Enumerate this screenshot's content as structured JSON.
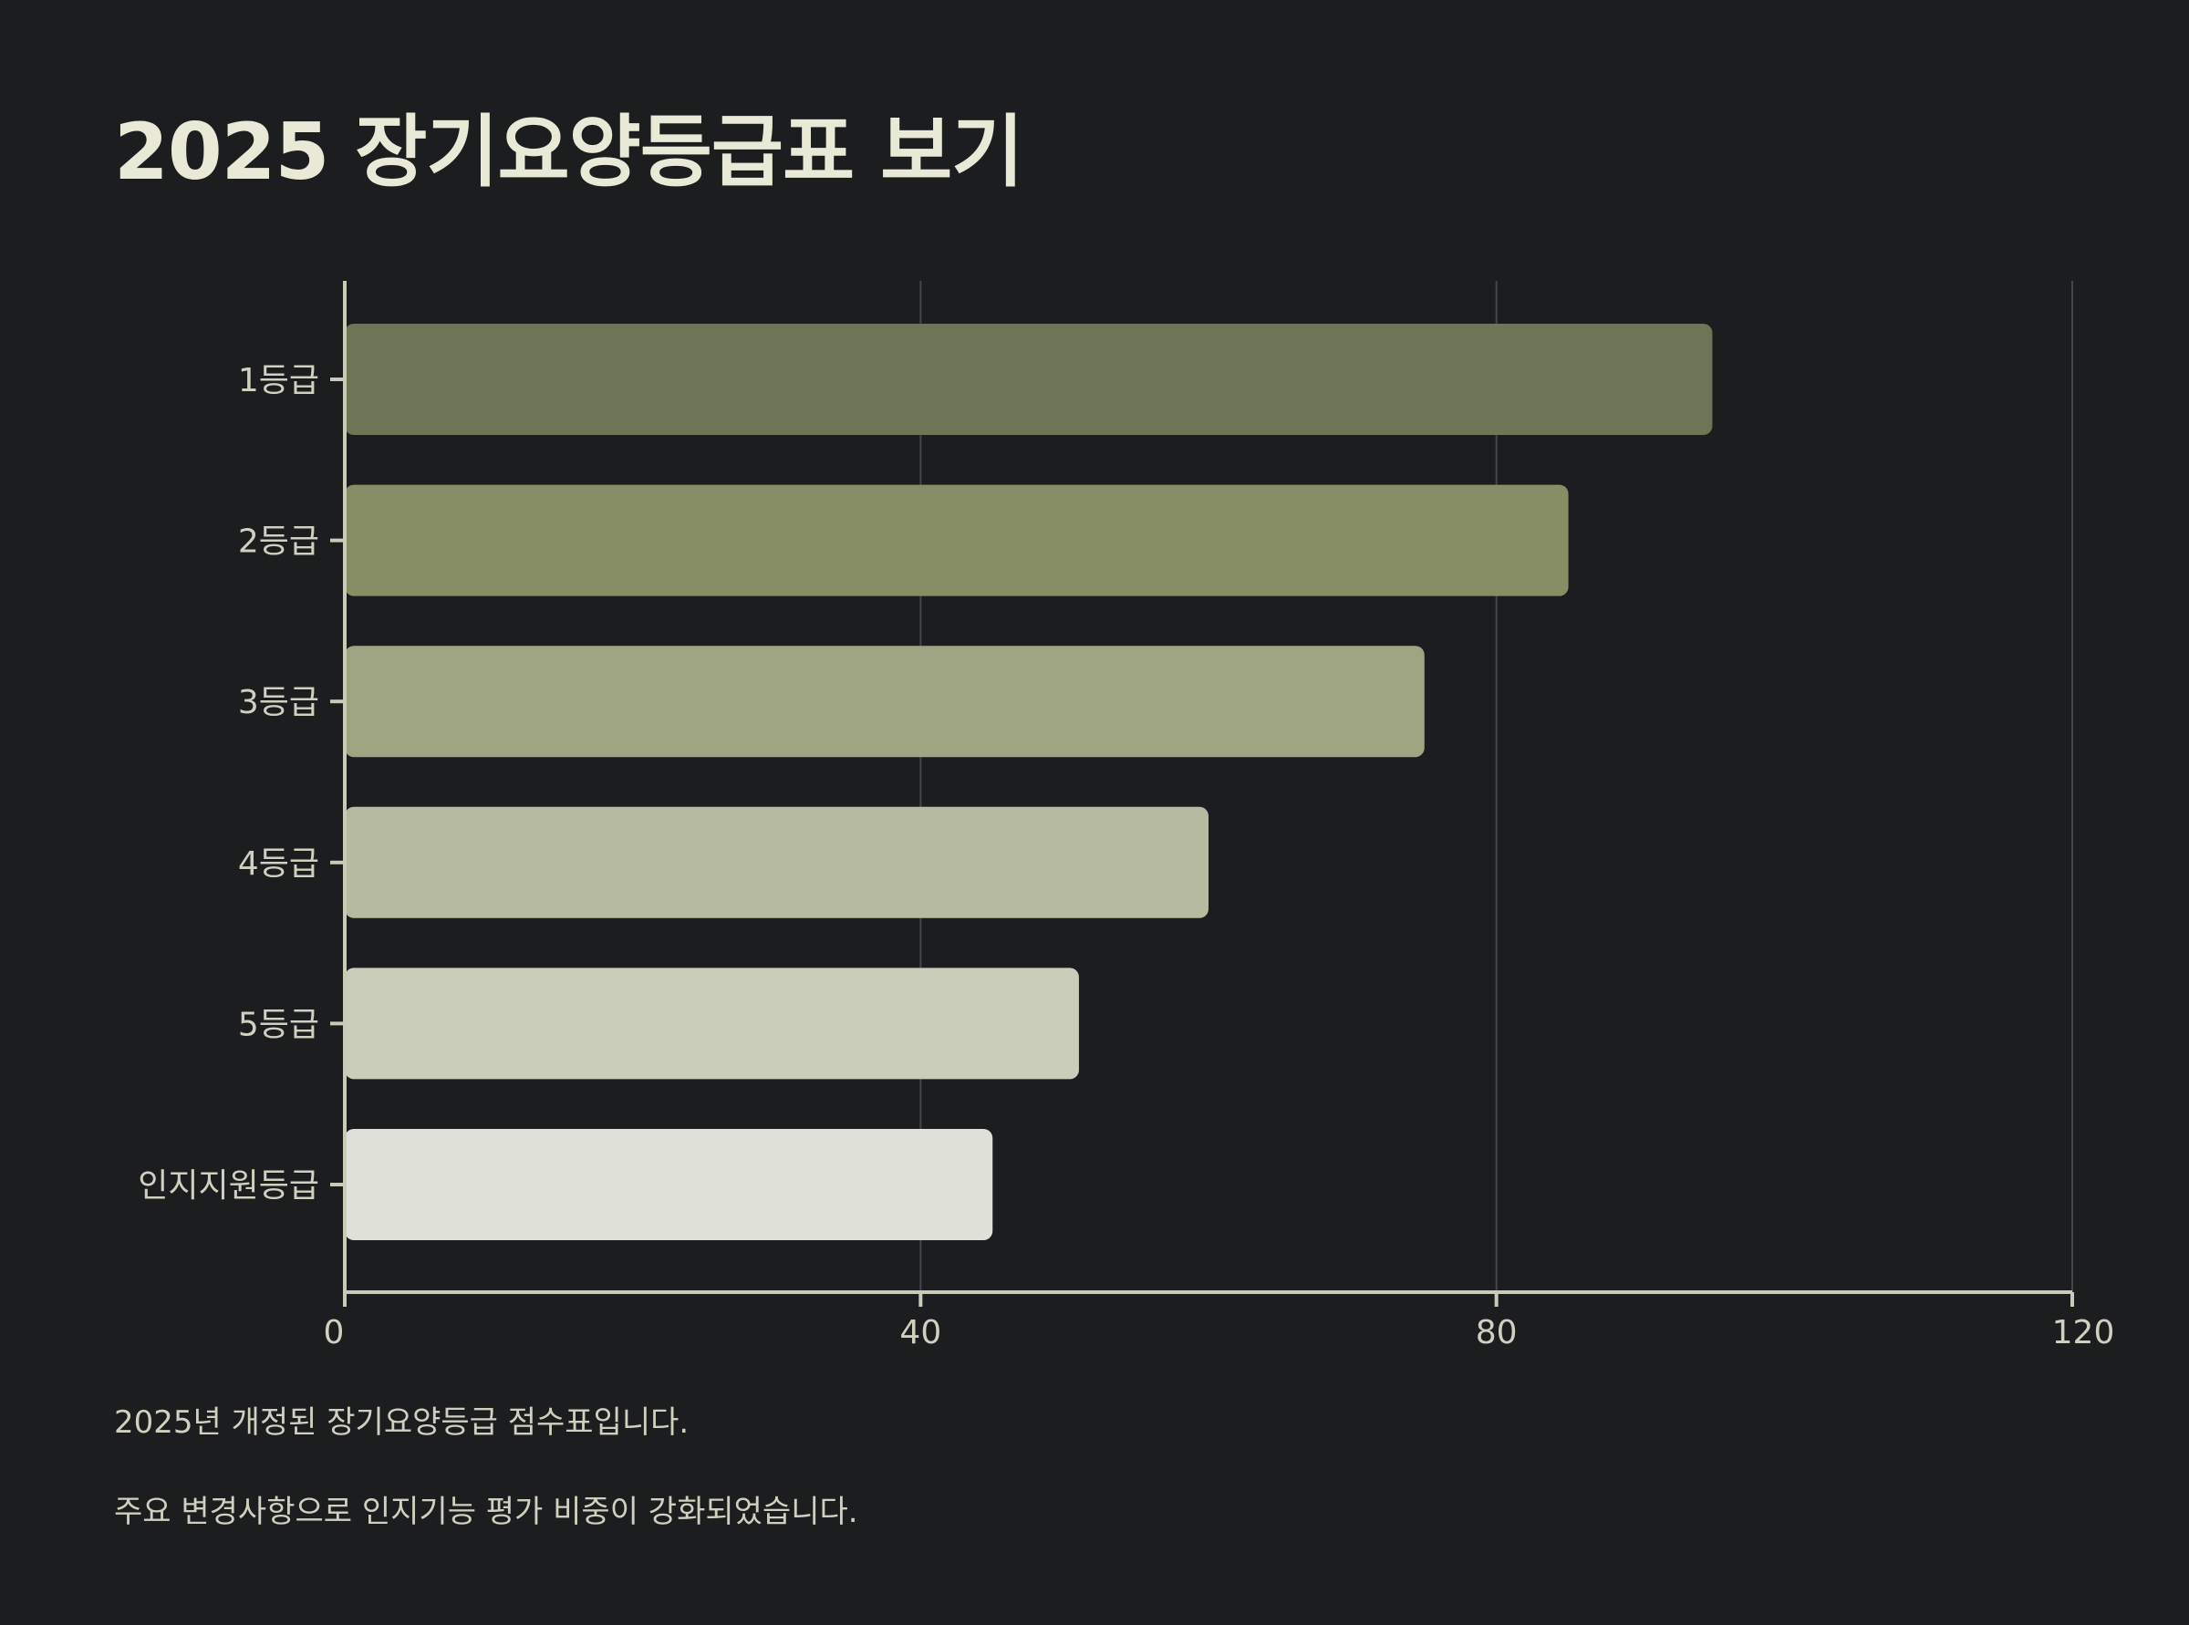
{
  "title": "2025 장기요양등급표 보기",
  "notes": [
    "2025년 개정된 장기요양등급 점수표입니다.",
    "주요 변경사항으로 인지기능 평가 비중이 강화되었습니다."
  ],
  "colors": {
    "background": "#1c1d1f",
    "title": "#e8e9d6",
    "axis": "#c9cbb9",
    "grid": "#44464a",
    "text": "#cfd0bf"
  },
  "chart_data": {
    "type": "bar",
    "orientation": "horizontal",
    "categories": [
      "1등급",
      "2등급",
      "3등급",
      "4등급",
      "5등급",
      "인지지원등급"
    ],
    "values": [
      95,
      85,
      75,
      60,
      51,
      45
    ],
    "bar_colors": [
      "#6e7456",
      "#878d65",
      "#9fa582",
      "#b6baa0",
      "#cacdba",
      "#dfe0d8"
    ],
    "xlim": [
      0,
      120
    ],
    "xticks": [
      0,
      40,
      80,
      120
    ],
    "xtick_labels": [
      "0",
      "40",
      "80",
      "120"
    ],
    "grid": "vertical",
    "xlabel": "",
    "ylabel": ""
  }
}
